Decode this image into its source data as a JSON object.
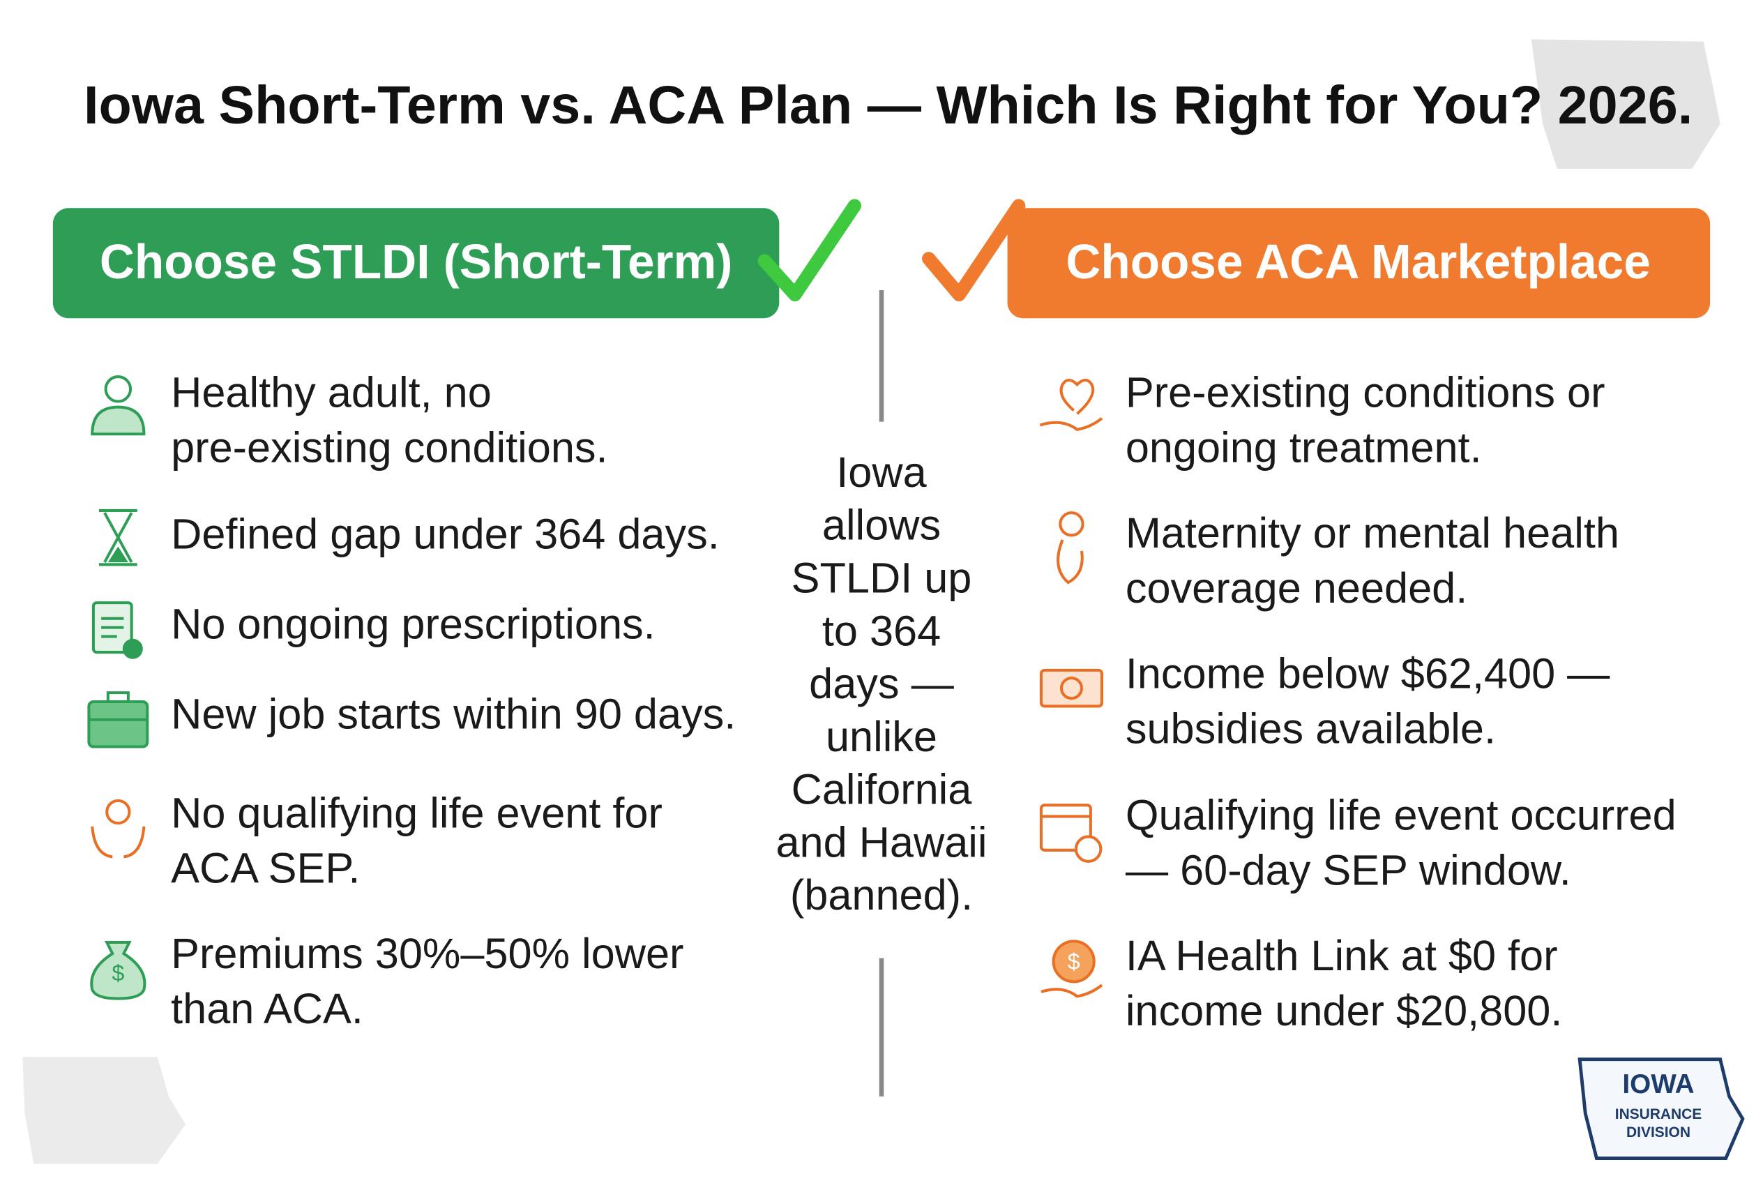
{
  "title": "Iowa Short-Term vs. ACA Plan — Which Is Right for You? 2026.",
  "left": {
    "heading": "Choose STLDI (Short-Term)",
    "items": [
      [
        "Healthy adult, no",
        "pre-existing conditions."
      ],
      [
        "Defined gap under 364 days."
      ],
      [
        "No ongoing prescriptions."
      ],
      [
        "New job starts within 90 days."
      ],
      [
        "No qualifying life event for",
        "ACA SEP."
      ],
      [
        "Premiums 30%–50% lower",
        "than ACA."
      ]
    ]
  },
  "center": [
    "Iowa",
    "allows",
    "STLDI up",
    "to 364",
    "days —",
    "unlike",
    "California",
    "and Hawaii",
    "(banned)."
  ],
  "right": {
    "heading": "Choose ACA Marketplace",
    "items": [
      [
        "Pre-existing conditions or",
        "ongoing treatment."
      ],
      [
        "Maternity or mental health",
        "coverage needed."
      ],
      [
        "Income below $62,400 —",
        "subsidies available."
      ],
      [
        "Qualifying life event occurred",
        "— 60-day SEP window."
      ],
      [
        "IA Health Link at $0 for",
        "income under $20,800."
      ]
    ]
  },
  "logo": {
    "name": "IOWA",
    "line1": "INSURANCE",
    "line2": "DIVISION"
  }
}
